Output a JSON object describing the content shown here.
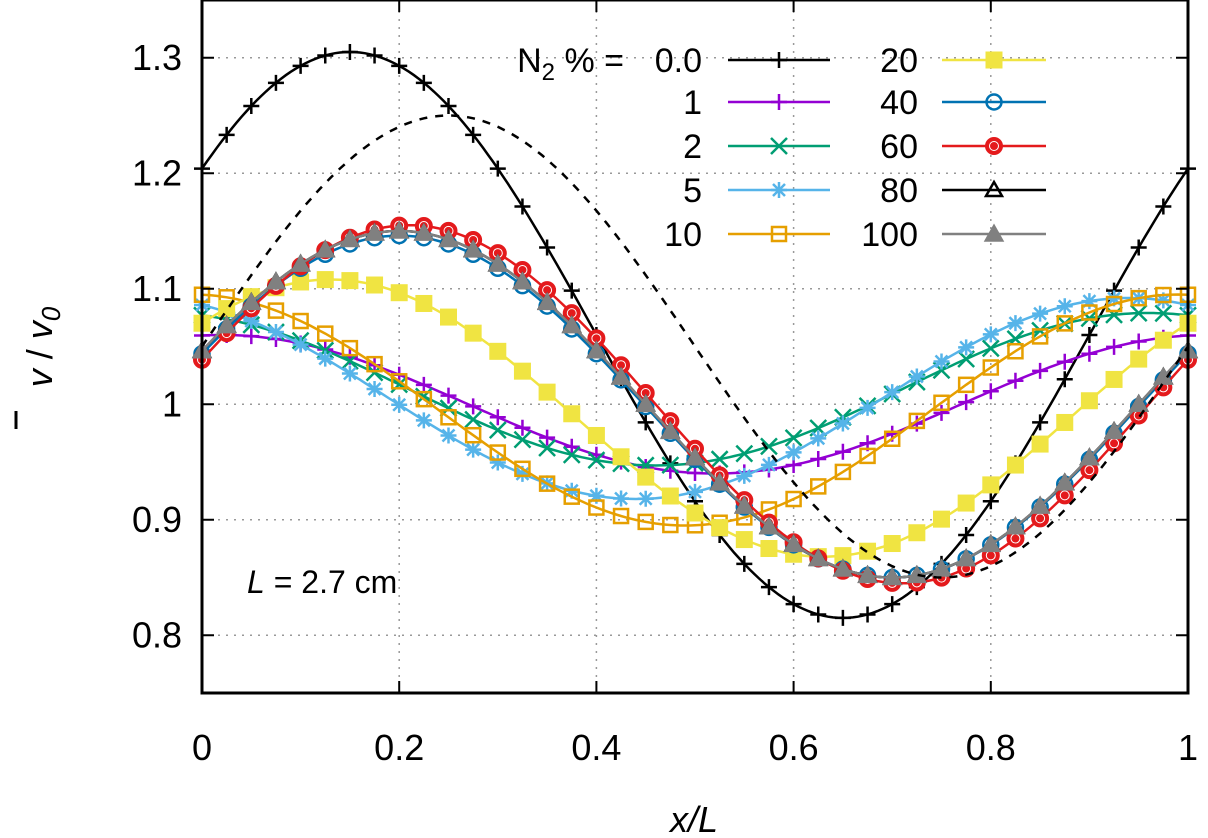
{
  "chart_data": {
    "type": "line",
    "xlabel": "x/L",
    "ylabel_parts": {
      "bar_v": "v",
      "sep": " / ",
      "v0": "v",
      "v0_sub": "0"
    },
    "xlim": [
      0,
      1
    ],
    "ylim": [
      0.75,
      1.35
    ],
    "xticks": [
      "0",
      "0.2",
      "0.4",
      "0.6",
      "0.8",
      "1"
    ],
    "yticks": [
      "0.8",
      "0.9",
      "1",
      "1.1",
      "1.2",
      "1.3"
    ],
    "grid": true,
    "annotation": {
      "var": "L",
      "text": " = 2.7 cm"
    },
    "legend": {
      "prefix_main": "N",
      "prefix_sub": "2",
      "prefix_rest": " % = ",
      "placement": "top-right",
      "entries": [
        "0.0",
        "1",
        "2",
        "5",
        "10",
        "20",
        "40",
        "60",
        "80",
        "100"
      ]
    },
    "series": [
      {
        "label": "0.0",
        "color": "#000000",
        "marker": "plus",
        "amp": 0.245,
        "phase": 0.15,
        "offset": 1.06,
        "marker_step": 0.025
      },
      {
        "label": "1",
        "color": "#9400d3",
        "marker": "plus",
        "amp": 0.06,
        "phase": 0.02,
        "offset": 1.0,
        "marker_step": 0.025
      },
      {
        "label": "2",
        "color": "#009e73",
        "marker": "x",
        "amp": 0.066,
        "phase": 0.96,
        "offset": 1.013,
        "marker_step": 0.025
      },
      {
        "label": "5",
        "color": "#56b4e9",
        "marker": "star",
        "amp": 0.087,
        "phase": 0.94,
        "offset": 1.005,
        "marker_step": 0.025
      },
      {
        "label": "10",
        "color": "#e69f00",
        "marker": "square-open",
        "amp": 0.1,
        "phase": 0.99,
        "offset": 0.995,
        "marker_step": 0.025
      },
      {
        "label": "20",
        "color": "#f0e442",
        "marker": "square-filled",
        "amp": 0.12,
        "phase": 0.13,
        "offset": 0.988,
        "marker_step": 0.025
      },
      {
        "label": "40",
        "color": "#0072b2",
        "marker": "circle-open",
        "amp": 0.148,
        "phase": 0.2,
        "offset": 0.998,
        "marker_step": 0.025
      },
      {
        "label": "60",
        "color": "#e41a1c",
        "marker": "circle-filled",
        "amp": 0.155,
        "phase": 0.21,
        "offset": 1.0,
        "marker_step": 0.025
      },
      {
        "label": "80",
        "color": "#000000",
        "marker": "triangle-open",
        "amp": 0.15,
        "phase": 0.2,
        "offset": 1.0,
        "marker_step": 0.025
      },
      {
        "label": "100",
        "color": "#808080",
        "marker": "triangle-filled",
        "amp": 0.15,
        "phase": 0.2,
        "offset": 1.0,
        "marker_step": 0.025
      },
      {
        "label": "",
        "color": "#000000",
        "marker": "none",
        "dashed": true,
        "amp": 0.2,
        "phase": 0.25,
        "offset": 1.05,
        "marker_step": 0.025
      }
    ]
  }
}
